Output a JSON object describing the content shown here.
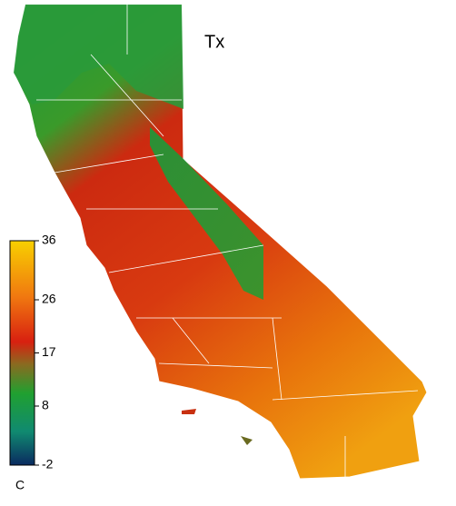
{
  "title": "Tx",
  "colorbar": {
    "lim": [
      -2,
      36
    ],
    "ticks": [
      36,
      26,
      17,
      8,
      -2
    ],
    "unit": "C"
  }
}
